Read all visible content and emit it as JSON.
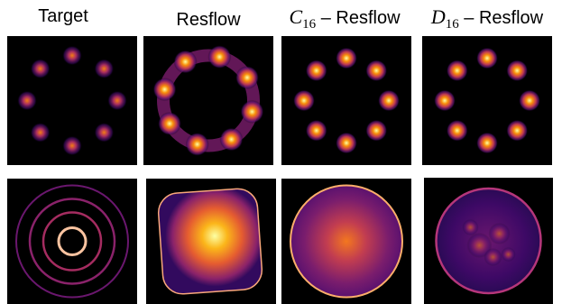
{
  "columns": [
    {
      "title": "Target"
    },
    {
      "title": "Resflow"
    },
    {
      "symbol": "C",
      "subscript": "16",
      "rest": " – Resflow"
    },
    {
      "symbol": "D",
      "subscript": "16",
      "rest": " – Resflow"
    }
  ]
}
